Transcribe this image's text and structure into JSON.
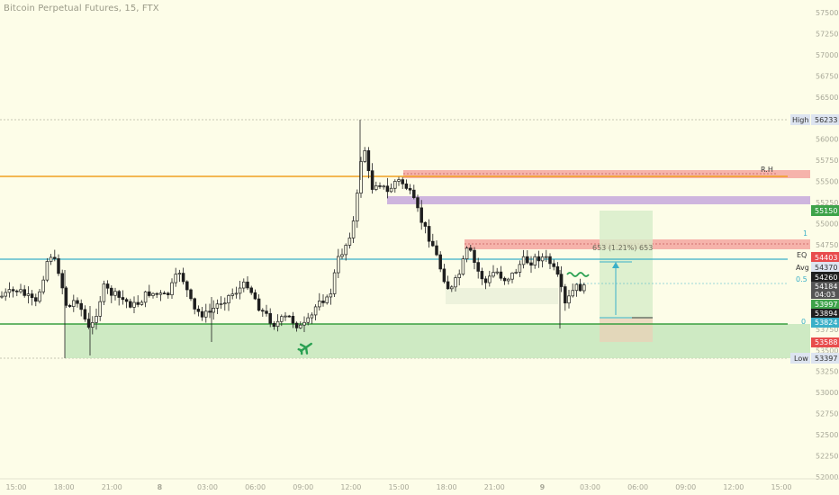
{
  "title": "Bitcoin Perpetual Futures, 15, FTX",
  "colors": {
    "background": "#fdfde8",
    "up_candle": "#1f1f1f",
    "down_candle": "#1f1f1f",
    "orange_line": "#f0a020",
    "cyan_line": "#3ab0c8",
    "green_line": "#3aa040",
    "red_zone": "#f4a6a0",
    "purple_zone": "#c6a8dc",
    "green_zone": "#c6e6bc",
    "high_tag": "#dde4f0",
    "green_tag": "#3ea34a",
    "red_tag": "#e84c4c",
    "black_tag": "#1f1f1f",
    "cyan_tag": "#3ab0c8"
  },
  "price_axis": {
    "ticks": [
      "57500",
      "57250",
      "57000",
      "56750",
      "56500",
      "56250",
      "56000",
      "55750",
      "55500",
      "55250",
      "55000",
      "54750",
      "54500",
      "54250",
      "54000",
      "53750",
      "53500",
      "53250",
      "53000",
      "52750",
      "52500",
      "52250",
      "52000"
    ]
  },
  "time_axis": {
    "ticks": [
      "15:00",
      "18:00",
      "21:00",
      "8",
      "03:00",
      "06:00",
      "09:00",
      "12:00",
      "15:00",
      "18:00",
      "21:00",
      "9",
      "03:00",
      "06:00",
      "09:00",
      "12:00",
      "15:00"
    ]
  },
  "tags": {
    "high": {
      "label": "High",
      "value": "56233"
    },
    "range_high": {
      "value": "55150"
    },
    "eq_value": "54403",
    "avg_label": "Avg",
    "avg_value": "54370",
    "current_price": "54260",
    "p54184": "54184",
    "countdown": "04:03",
    "p53997": "53997",
    "p53894": "53894",
    "p53824": "53824",
    "p53588": "53588",
    "low": {
      "label": "Low",
      "value": "53397"
    }
  },
  "annotations": {
    "rh": "R.H",
    "eq": "EQ",
    "fib_one": "1",
    "fib_half": "0.5",
    "fib_zero": "0",
    "measure": "653 (1.21%) 653"
  },
  "icons": {
    "airplane": "airplane-icon",
    "wave": "wave-icon"
  }
}
